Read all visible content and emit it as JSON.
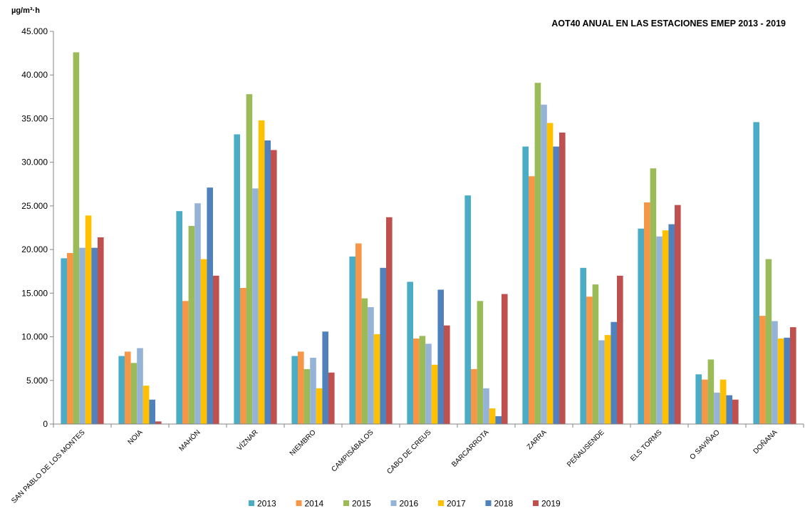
{
  "chart_data": {
    "type": "bar",
    "title": "AOT40 ANUAL EN LAS ESTACIONES EMEP 2013 - 2019",
    "ylabel": "µg/m³·h",
    "xlabel": "",
    "ylim": [
      0,
      45000
    ],
    "yticks": [
      0,
      5000,
      10000,
      15000,
      20000,
      25000,
      30000,
      35000,
      40000,
      45000
    ],
    "ytick_labels": [
      "0",
      "5.000",
      "10.000",
      "15.000",
      "20.000",
      "25.000",
      "30.000",
      "35.000",
      "40.000",
      "45.000"
    ],
    "grid": false,
    "legend_position": "bottom",
    "categories": [
      "SAN PABLO DE LOS MONTES",
      "NOIA",
      "MAHÓN",
      "VÍZNAR",
      "NIEMBRO",
      "CAMPISÁBALOS",
      "CABO DE CREUS",
      "BARCARROTA",
      "ZARRA",
      "PEÑAUSENDE",
      "ELS TORMS",
      "O SAVIÑAO",
      "DOÑANA"
    ],
    "series": [
      {
        "name": "2013",
        "color": "#4bacc6",
        "values": [
          19000,
          7800,
          24400,
          33200,
          7800,
          19200,
          16300,
          26200,
          31800,
          17900,
          22400,
          5700,
          34600
        ]
      },
      {
        "name": "2014",
        "color": "#f79646",
        "values": [
          19600,
          8300,
          14100,
          15600,
          8300,
          20700,
          9800,
          6300,
          28400,
          14600,
          25400,
          5100,
          12400
        ]
      },
      {
        "name": "2015",
        "color": "#9bbb59",
        "values": [
          42600,
          7000,
          22700,
          37800,
          6300,
          14400,
          10100,
          14100,
          39100,
          16000,
          29300,
          7400,
          18900
        ]
      },
      {
        "name": "2016",
        "color": "#95b3d7",
        "values": [
          20200,
          8700,
          25300,
          27000,
          7600,
          13400,
          9200,
          4100,
          36600,
          9600,
          21500,
          3600,
          11800
        ]
      },
      {
        "name": "2017",
        "color": "#ffc000",
        "values": [
          23900,
          4400,
          18900,
          34800,
          4100,
          10300,
          6800,
          1800,
          34500,
          10200,
          22200,
          5100,
          9800
        ]
      },
      {
        "name": "2018",
        "color": "#4f81bd",
        "values": [
          20200,
          2800,
          27100,
          32500,
          10600,
          17900,
          15400,
          900,
          31800,
          11700,
          22900,
          3300,
          9900
        ]
      },
      {
        "name": "2019",
        "color": "#c0504d",
        "values": [
          21400,
          300,
          17000,
          31400,
          5900,
          23700,
          11300,
          14900,
          33400,
          17000,
          25100,
          2800,
          11100
        ]
      }
    ]
  }
}
